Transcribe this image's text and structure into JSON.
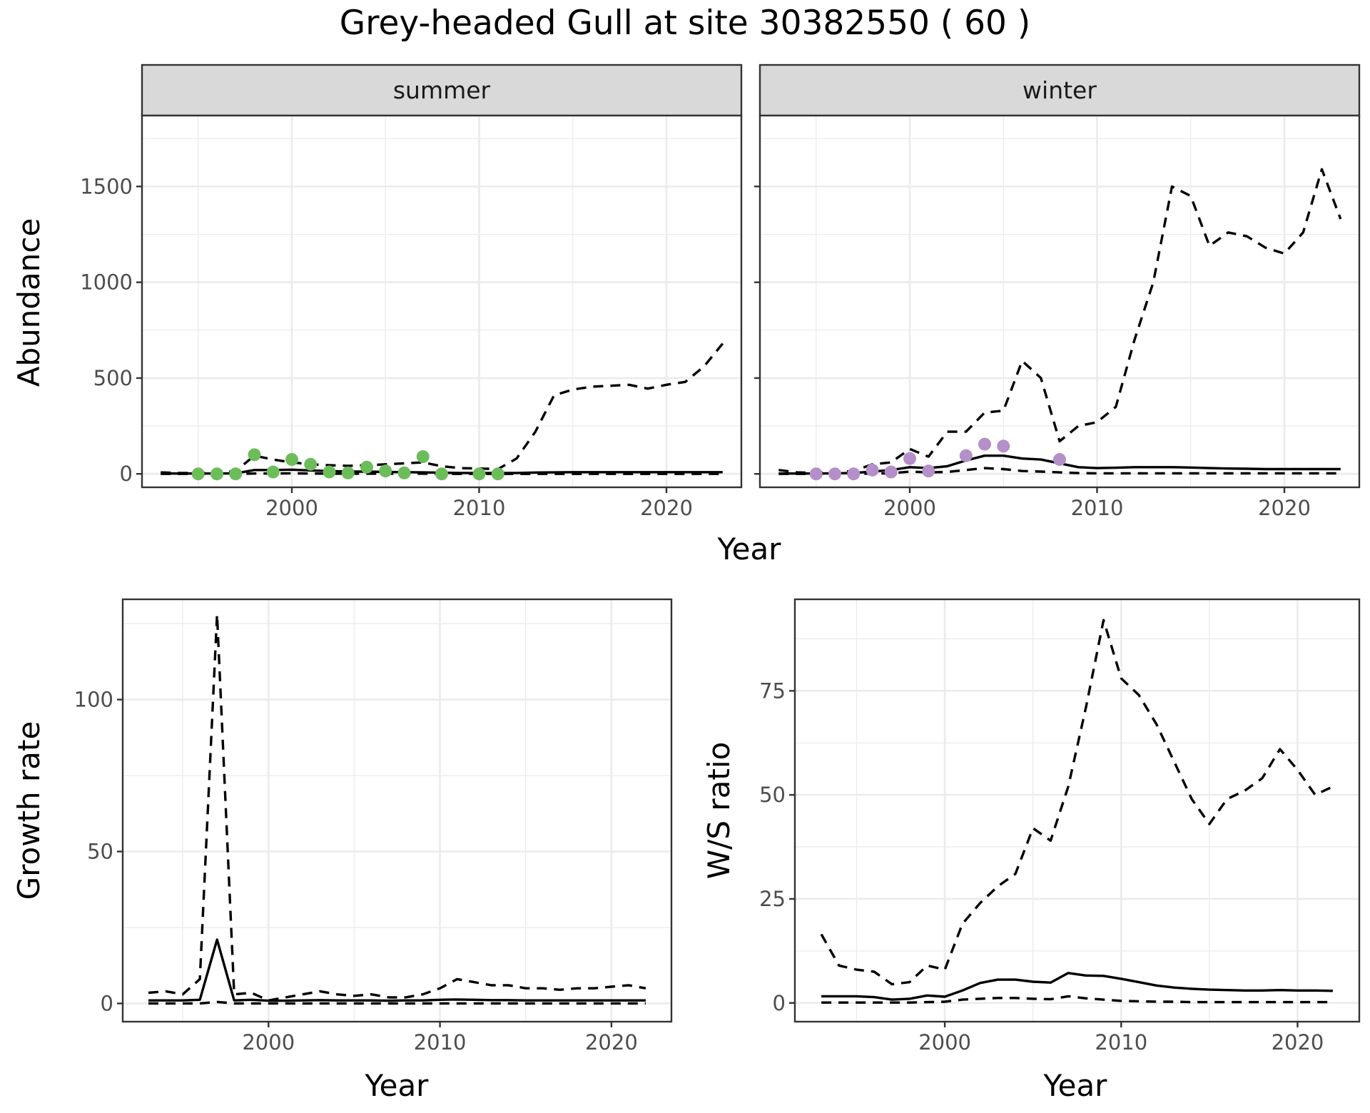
{
  "title": "Grey-headed Gull at site 30382550 ( 60 )",
  "colors": {
    "summer_points": "#6cbd5a",
    "winter_points": "#b48fc9",
    "lines": "#000000",
    "strip": "#d9d9d9",
    "grid": "#ebebeb"
  },
  "top_row": {
    "ylabel": "Abundance",
    "xlabel": "Year"
  },
  "bottom_left": {
    "ylabel": "Growth rate",
    "xlabel": "Year"
  },
  "bottom_right": {
    "ylabel": "W/S ratio",
    "xlabel": "Year"
  },
  "chart_data": [
    {
      "type": "line",
      "facet": "summer",
      "xlabel": "Year",
      "ylabel": "Abundance",
      "xlim": [
        1992,
        2024
      ],
      "ylim": [
        -70,
        1870
      ],
      "x_ticks": [
        2000,
        2010,
        2020
      ],
      "y_ticks": [
        0,
        500,
        1000,
        1500
      ],
      "grid": true,
      "series": [
        {
          "role": "mean",
          "style": "solid",
          "x": [
            1993,
            1994,
            1995,
            1996,
            1997,
            1998,
            1999,
            2000,
            2001,
            2002,
            2003,
            2004,
            2005,
            2006,
            2007,
            2008,
            2009,
            2010,
            2011,
            2012,
            2013,
            2014,
            2015,
            2016,
            2017,
            2018,
            2019,
            2020,
            2021,
            2022,
            2023
          ],
          "y": [
            2,
            2,
            2,
            2,
            3,
            20,
            20,
            22,
            18,
            15,
            12,
            12,
            10,
            9,
            8,
            6,
            5,
            5,
            5,
            5,
            7,
            8,
            9,
            9,
            9,
            9,
            9,
            9,
            9,
            9,
            9
          ]
        },
        {
          "role": "upper",
          "style": "dashed",
          "x": [
            1993,
            1994,
            1995,
            1996,
            1997,
            1998,
            1999,
            2000,
            2001,
            2002,
            2003,
            2004,
            2005,
            2006,
            2007,
            2008,
            2009,
            2010,
            2011,
            2012,
            2013,
            2014,
            2015,
            2016,
            2017,
            2018,
            2019,
            2020,
            2021,
            2022,
            2023
          ],
          "y": [
            8,
            5,
            5,
            5,
            15,
            95,
            75,
            60,
            50,
            45,
            42,
            45,
            50,
            55,
            60,
            40,
            30,
            28,
            25,
            80,
            220,
            410,
            440,
            455,
            460,
            465,
            445,
            465,
            480,
            560,
            680
          ]
        },
        {
          "role": "lower",
          "style": "dashed",
          "x": [
            1993,
            1994,
            1995,
            1996,
            1997,
            1998,
            1999,
            2000,
            2001,
            2002,
            2003,
            2004,
            2005,
            2006,
            2007,
            2008,
            2009,
            2010,
            2011,
            2012,
            2013,
            2014,
            2015,
            2016,
            2017,
            2018,
            2019,
            2020,
            2021,
            2022,
            2023
          ],
          "y": [
            0,
            0,
            0,
            0,
            0,
            2,
            2,
            3,
            2,
            1,
            1,
            1,
            1,
            1,
            1,
            0,
            0,
            0,
            0,
            0,
            0,
            0,
            0,
            0,
            0,
            0,
            0,
            0,
            0,
            0,
            0
          ]
        }
      ],
      "points": {
        "x": [
          1995,
          1996,
          1997,
          1998,
          1999,
          2000,
          2001,
          2002,
          2003,
          2004,
          2005,
          2006,
          2007,
          2008,
          2010,
          2011
        ],
        "y": [
          0,
          0,
          0,
          100,
          10,
          75,
          50,
          10,
          5,
          35,
          15,
          5,
          90,
          0,
          0,
          0
        ]
      }
    },
    {
      "type": "line",
      "facet": "winter",
      "xlabel": "Year",
      "ylabel": "Abundance",
      "xlim": [
        1992,
        2024
      ],
      "ylim": [
        -70,
        1870
      ],
      "x_ticks": [
        2000,
        2010,
        2020
      ],
      "y_ticks": [
        0,
        500,
        1000,
        1500
      ],
      "grid": true,
      "series": [
        {
          "role": "mean",
          "style": "solid",
          "x": [
            1993,
            1994,
            1995,
            1996,
            1997,
            1998,
            1999,
            2000,
            2001,
            2002,
            2003,
            2004,
            2005,
            2006,
            2007,
            2008,
            2009,
            2010,
            2011,
            2012,
            2013,
            2014,
            2015,
            2016,
            2017,
            2018,
            2019,
            2020,
            2021,
            2022,
            2023
          ],
          "y": [
            2,
            2,
            2,
            3,
            5,
            12,
            20,
            35,
            30,
            40,
            70,
            95,
            95,
            80,
            75,
            55,
            35,
            30,
            32,
            35,
            35,
            35,
            33,
            30,
            28,
            27,
            25,
            25,
            25,
            25,
            25
          ]
        },
        {
          "role": "upper",
          "style": "dashed",
          "x": [
            1993,
            1994,
            1995,
            1996,
            1997,
            1998,
            1999,
            2000,
            2001,
            2002,
            2003,
            2004,
            2005,
            2006,
            2007,
            2008,
            2009,
            2010,
            2011,
            2012,
            2013,
            2014,
            2015,
            2016,
            2017,
            2018,
            2019,
            2020,
            2021,
            2022,
            2023
          ],
          "y": [
            20,
            8,
            5,
            8,
            15,
            50,
            60,
            130,
            90,
            220,
            220,
            320,
            330,
            590,
            500,
            170,
            250,
            270,
            350,
            700,
            1000,
            1500,
            1450,
            1190,
            1260,
            1240,
            1180,
            1150,
            1260,
            1590,
            1330
          ]
        },
        {
          "role": "lower",
          "style": "dashed",
          "x": [
            1993,
            1994,
            1995,
            1996,
            1997,
            1998,
            1999,
            2000,
            2001,
            2002,
            2003,
            2004,
            2005,
            2006,
            2007,
            2008,
            2009,
            2010,
            2011,
            2012,
            2013,
            2014,
            2015,
            2016,
            2017,
            2018,
            2019,
            2020,
            2021,
            2022,
            2023
          ],
          "y": [
            0,
            0,
            0,
            0,
            0,
            2,
            3,
            12,
            8,
            10,
            20,
            30,
            25,
            15,
            12,
            8,
            4,
            3,
            3,
            3,
            3,
            3,
            3,
            3,
            3,
            3,
            3,
            3,
            3,
            3,
            3
          ]
        }
      ],
      "points": {
        "x": [
          1995,
          1996,
          1997,
          1998,
          1999,
          2000,
          2001,
          2003,
          2004,
          2005,
          2008
        ],
        "y": [
          0,
          0,
          0,
          20,
          10,
          80,
          15,
          95,
          155,
          145,
          75
        ]
      }
    },
    {
      "type": "line",
      "xlabel": "Year",
      "ylabel": "Growth rate",
      "xlim": [
        1991.5,
        2023.5
      ],
      "ylim": [
        -6,
        133
      ],
      "x_ticks": [
        2000,
        2010,
        2020
      ],
      "y_ticks": [
        0,
        50,
        100
      ],
      "grid": true,
      "series": [
        {
          "role": "mean",
          "style": "solid",
          "x": [
            1993,
            1994,
            1995,
            1996,
            1997,
            1998,
            1999,
            2000,
            2001,
            2002,
            2003,
            2004,
            2005,
            2006,
            2007,
            2008,
            2009,
            2010,
            2011,
            2012,
            2013,
            2014,
            2015,
            2016,
            2017,
            2018,
            2019,
            2020,
            2021,
            2022
          ],
          "y": [
            1,
            1,
            1,
            1.2,
            21,
            1,
            1.2,
            0.9,
            0.9,
            1,
            1.1,
            1,
            1,
            1,
            0.9,
            1,
            1,
            1.2,
            1.3,
            1.2,
            1.1,
            1.1,
            1,
            1,
            1,
            1,
            1,
            1,
            1,
            1
          ]
        },
        {
          "role": "upper",
          "style": "dashed",
          "x": [
            1993,
            1994,
            1995,
            1996,
            1997,
            1998,
            1999,
            2000,
            2001,
            2002,
            2003,
            2004,
            2005,
            2006,
            2007,
            2008,
            2009,
            2010,
            2011,
            2012,
            2013,
            2014,
            2015,
            2016,
            2017,
            2018,
            2019,
            2020,
            2021,
            2022
          ],
          "y": [
            3.5,
            4,
            3,
            8,
            128,
            3,
            3.5,
            1,
            2,
            3,
            4,
            3,
            2.5,
            3,
            2,
            2,
            3,
            5,
            8,
            7,
            6,
            6,
            5,
            5,
            4.5,
            5,
            5,
            5.5,
            6,
            5
          ]
        },
        {
          "role": "lower",
          "style": "dashed",
          "x": [
            1993,
            1994,
            1995,
            1996,
            1997,
            1998,
            1999,
            2000,
            2001,
            2002,
            2003,
            2004,
            2005,
            2006,
            2007,
            2008,
            2009,
            2010,
            2011,
            2012,
            2013,
            2014,
            2015,
            2016,
            2017,
            2018,
            2019,
            2020,
            2021,
            2022
          ],
          "y": [
            0,
            0,
            0,
            0,
            0.5,
            0,
            0,
            0,
            0,
            0,
            0,
            0,
            0,
            0,
            0,
            0,
            0,
            0,
            0,
            0,
            0,
            0,
            0,
            0,
            0,
            0,
            0,
            0,
            0,
            0
          ]
        }
      ]
    },
    {
      "type": "line",
      "xlabel": "Year",
      "ylabel": "W/S ratio",
      "xlim": [
        1991.5,
        2023.5
      ],
      "ylim": [
        -4.5,
        97
      ],
      "x_ticks": [
        2000,
        2010,
        2020
      ],
      "y_ticks": [
        0,
        25,
        50,
        75
      ],
      "grid": true,
      "series": [
        {
          "role": "mean",
          "style": "solid",
          "x": [
            1993,
            1994,
            1995,
            1996,
            1997,
            1998,
            1999,
            2000,
            2001,
            2002,
            2003,
            2004,
            2005,
            2006,
            2007,
            2008,
            2009,
            2010,
            2011,
            2012,
            2013,
            2014,
            2015,
            2016,
            2017,
            2018,
            2019,
            2020,
            2021,
            2022
          ],
          "y": [
            1.6,
            1.6,
            1.6,
            1.4,
            0.8,
            1,
            1.8,
            1.5,
            3,
            4.8,
            5.6,
            5.6,
            5.1,
            4.9,
            7.2,
            6.6,
            6.5,
            5.8,
            5,
            4.2,
            3.7,
            3.4,
            3.2,
            3.1,
            3,
            3,
            3.1,
            3,
            3,
            2.9
          ]
        },
        {
          "role": "upper",
          "style": "dashed",
          "x": [
            1993,
            1994,
            1995,
            1996,
            1997,
            1998,
            1999,
            2000,
            2001,
            2002,
            2003,
            2004,
            2005,
            2006,
            2007,
            2008,
            2009,
            2010,
            2011,
            2012,
            2013,
            2014,
            2015,
            2016,
            2017,
            2018,
            2019,
            2020,
            2021,
            2022
          ],
          "y": [
            16.5,
            9,
            8,
            7.5,
            4.5,
            5,
            9,
            8,
            19,
            24,
            28,
            31,
            42,
            39,
            52,
            71,
            92,
            78,
            74,
            67,
            58,
            49,
            43,
            49,
            51,
            54,
            61,
            56,
            50,
            52
          ]
        },
        {
          "role": "lower",
          "style": "dashed",
          "x": [
            1993,
            1994,
            1995,
            1996,
            1997,
            1998,
            1999,
            2000,
            2001,
            2002,
            2003,
            2004,
            2005,
            2006,
            2007,
            2008,
            2009,
            2010,
            2011,
            2012,
            2013,
            2014,
            2015,
            2016,
            2017,
            2018,
            2019,
            2020,
            2021,
            2022
          ],
          "y": [
            0.1,
            0.1,
            0.1,
            0.1,
            0.1,
            0.1,
            0.2,
            0.3,
            0.8,
            1,
            1.2,
            1.2,
            1,
            0.9,
            1.6,
            1.1,
            0.8,
            0.5,
            0.4,
            0.3,
            0.3,
            0.2,
            0.2,
            0.2,
            0.2,
            0.2,
            0.2,
            0.2,
            0.2,
            0.2
          ]
        }
      ]
    }
  ]
}
